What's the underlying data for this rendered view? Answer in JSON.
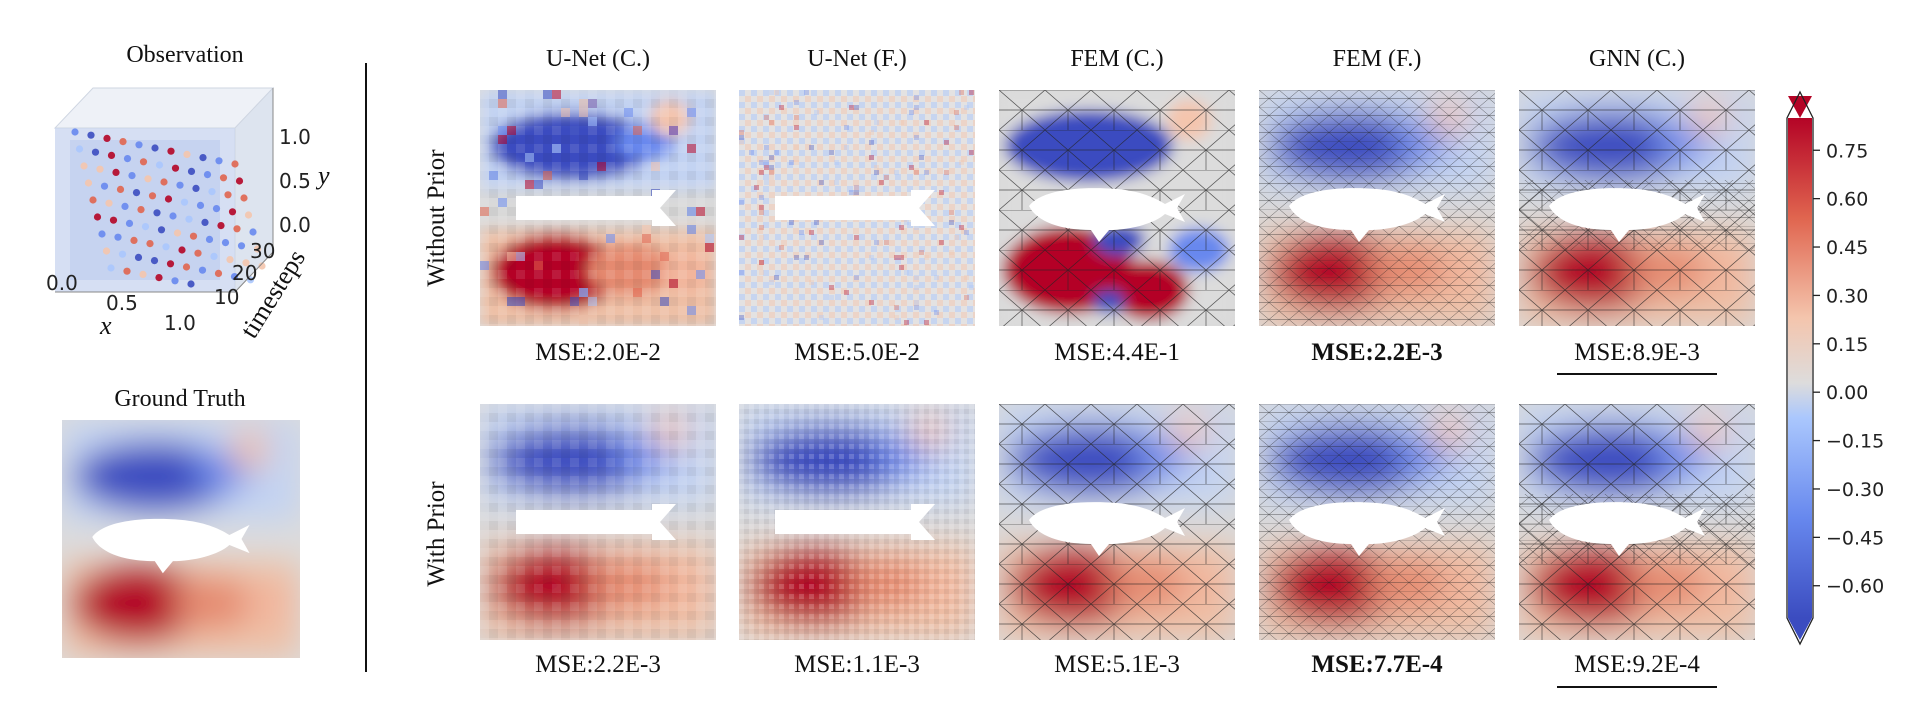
{
  "colors": {
    "deep_red": "#b40426",
    "red": "#e0654f",
    "light_red": "#f4c5ad",
    "neutral": "#dddcdc",
    "light_blue": "#aac7fd",
    "blue": "#6788ee",
    "deep_blue": "#3b4cc0",
    "mesh_line": "#222222",
    "panel_bg": "#d9d9d9"
  },
  "chart_data": [
    {
      "type": "scatter",
      "title": "Observation",
      "xlabel": "x",
      "ylabel": "y",
      "zlabel": "timesteps",
      "x_ticks": [
        "0.0",
        "0.5",
        "1.0"
      ],
      "y_ticks": [
        "0.0",
        "0.5",
        "1.0"
      ],
      "z_ticks": [
        "10",
        "20",
        "30"
      ]
    },
    {
      "type": "heatmap",
      "title": "Ground Truth"
    },
    {
      "type": "heatmap",
      "columns": [
        "U-Net (C.)",
        "U-Net (F.)",
        "FEM (C.)",
        "FEM (F.)",
        "GNN (C.)"
      ],
      "rows": [
        {
          "label": "Without Prior",
          "mse": [
            "MSE:2.0E-2",
            "MSE:5.0E-2",
            "MSE:4.4E-1",
            "MSE:2.2E-3",
            "MSE:8.9E-3"
          ],
          "best_index": 3,
          "second_index": 4
        },
        {
          "label": "With Prior",
          "mse": [
            "MSE:2.2E-3",
            "MSE:1.1E-3",
            "MSE:5.1E-3",
            "MSE:7.7E-4",
            "MSE:9.2E-4"
          ],
          "best_index": 3,
          "second_index": 4
        }
      ]
    },
    {
      "type": "colorbar",
      "ticks": [
        "0.75",
        "0.60",
        "0.45",
        "0.30",
        "0.15",
        "0.00",
        "−0.15",
        "−0.30",
        "−0.45",
        "−0.60"
      ],
      "tick_values": [
        0.75,
        0.6,
        0.45,
        0.3,
        0.15,
        0.0,
        -0.15,
        -0.3,
        -0.45,
        -0.6
      ],
      "range": [
        -0.7,
        0.85
      ],
      "colormap": "coolwarm",
      "extend": "both"
    }
  ]
}
